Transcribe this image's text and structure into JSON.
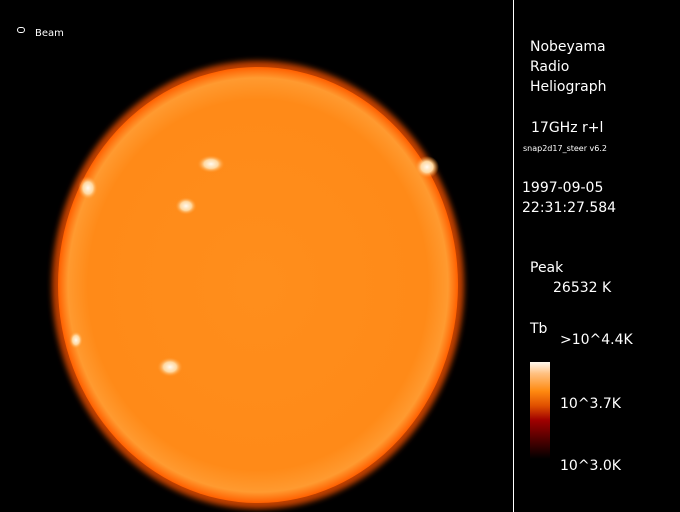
{
  "beam": {
    "label": "Beam"
  },
  "title": {
    "line1": "Nobeyama",
    "line2": "Radio",
    "line3": "Heliograph"
  },
  "observation": {
    "frequency": "17GHz r+l",
    "software": "snap2d17_steer v6.2"
  },
  "datetime": {
    "date": "1997-09-05",
    "time": "22:31:27.584"
  },
  "peak": {
    "label": "Peak",
    "value": "26532 K"
  },
  "colorbar": {
    "label": "Tb",
    "max": ">10^4.4K",
    "mid": "10^3.7K",
    "min": "10^3.0K"
  },
  "colors": {
    "disk": "#ff8c1a",
    "limb": "#ff6a00",
    "bright": "#fff6e8"
  }
}
